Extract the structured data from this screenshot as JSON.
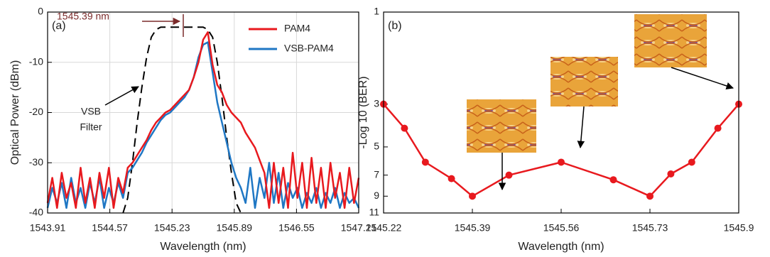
{
  "chart_data": [
    {
      "type": "line",
      "panel_label": "(a)",
      "xlabel": "Wavelength (nm)",
      "ylabel": "Optical Power  (dBm)",
      "xlim": [
        1543.91,
        1547.21
      ],
      "xticks": [
        1543.91,
        1544.57,
        1545.23,
        1545.89,
        1546.55,
        1547.21
      ],
      "ylim": [
        -40,
        0
      ],
      "yticks": [
        -40,
        -30,
        -20,
        -10,
        0
      ],
      "grid": true,
      "legend": "upper right",
      "annotations": [
        "1545.39 nm",
        "VSB",
        "Filter"
      ],
      "x": [
        1543.91,
        1543.96,
        1544.01,
        1544.06,
        1544.11,
        1544.16,
        1544.21,
        1544.26,
        1544.31,
        1544.36,
        1544.41,
        1544.46,
        1544.51,
        1544.56,
        1544.61,
        1544.66,
        1544.71,
        1544.76,
        1544.81,
        1544.86,
        1544.91,
        1544.96,
        1545.01,
        1545.06,
        1545.11,
        1545.16,
        1545.21,
        1545.26,
        1545.31,
        1545.36,
        1545.41,
        1545.46,
        1545.51,
        1545.56,
        1545.61,
        1545.66,
        1545.71,
        1545.76,
        1545.81,
        1545.86,
        1545.91,
        1545.96,
        1546.01,
        1546.06,
        1546.11,
        1546.16,
        1546.21,
        1546.26,
        1546.31,
        1546.36,
        1546.41,
        1546.46,
        1546.51,
        1546.56,
        1546.61,
        1546.66,
        1546.71,
        1546.76,
        1546.81,
        1546.86,
        1546.91,
        1546.96,
        1547.01,
        1547.06,
        1547.11,
        1547.16,
        1547.21
      ],
      "series": [
        {
          "name": "PAM4",
          "color": "#e8191e",
          "values": [
            -38,
            -33,
            -39,
            -32,
            -37,
            -34,
            -39,
            -31,
            -38,
            -33,
            -39,
            -32,
            -37,
            -31,
            -39,
            -33,
            -36,
            -31,
            -30,
            -28.5,
            -27,
            -25.5,
            -23.5,
            -22,
            -21,
            -20,
            -19.5,
            -18.5,
            -17.5,
            -16.5,
            -15.5,
            -13,
            -10,
            -5.5,
            -4,
            -10.5,
            -14.5,
            -16,
            -18.5,
            -20,
            -21,
            -22,
            -24,
            -25.5,
            -27,
            -29.5,
            -32,
            -39,
            -30,
            -38,
            -31,
            -39,
            -28,
            -37,
            -30,
            -39,
            -29,
            -38,
            -31,
            -39,
            -30,
            -37,
            -32,
            -39,
            -31,
            -38,
            -33
          ]
        },
        {
          "name": "VSB-PAM4",
          "color": "#1f77c4",
          "values": [
            -39,
            -35,
            -38,
            -34,
            -39,
            -33,
            -38,
            -35,
            -39,
            -34,
            -38,
            -33,
            -39,
            -35,
            -38,
            -34,
            -37,
            -32,
            -31,
            -29.5,
            -28,
            -26,
            -24.5,
            -23,
            -21.5,
            -20.5,
            -20,
            -19,
            -18,
            -17,
            -15.5,
            -13,
            -9,
            -6.5,
            -6,
            -12,
            -18,
            -22,
            -26,
            -30,
            -33,
            -35,
            -38,
            -31,
            -39,
            -33,
            -37,
            -30,
            -38,
            -32,
            -39,
            -34,
            -37,
            -35,
            -39,
            -36,
            -38,
            -35,
            -39,
            -36,
            -38,
            -35,
            -39,
            -36,
            -38,
            -37,
            -39
          ]
        },
        {
          "color": "#000000",
          "dash": true,
          "values": [
            null,
            null,
            null,
            null,
            null,
            null,
            null,
            null,
            null,
            null,
            null,
            null,
            null,
            null,
            null,
            null,
            -40,
            -37,
            -30,
            -22,
            -15,
            -9,
            -5,
            -3.5,
            -3,
            -3,
            -3,
            -3,
            -3,
            -3,
            -3,
            -3,
            -3,
            -3,
            -3.5,
            -5,
            -10,
            -17,
            -25,
            -32,
            -38,
            -40,
            null,
            null,
            null,
            null,
            null,
            null,
            null,
            null,
            null,
            null,
            null,
            null,
            null,
            null,
            null,
            null,
            null,
            null,
            null,
            null,
            null,
            null,
            null,
            null,
            null
          ]
        }
      ]
    },
    {
      "type": "line",
      "panel_label": "(b)",
      "xlabel": "Wavelength (nm)",
      "ylabel": "-Log 10 (BER)",
      "xlim": [
        1545.22,
        1545.9
      ],
      "xticks": [
        1545.22,
        1545.39,
        1545.56,
        1545.73,
        1545.9
      ],
      "ylim": [
        11,
        1
      ],
      "yticks": [
        1,
        3,
        5,
        7,
        9,
        11
      ],
      "log": true,
      "grid": false,
      "markers": true,
      "x": [
        1545.22,
        1545.26,
        1545.3,
        1545.35,
        1545.39,
        1545.46,
        1545.56,
        1545.66,
        1545.73,
        1545.77,
        1545.81,
        1545.86,
        1545.9
      ],
      "series": [
        {
          "color": "#e8191e",
          "values": [
            3,
            4,
            6,
            7.3,
            9,
            7,
            6,
            7.4,
            9,
            6.9,
            6,
            4,
            3
          ]
        }
      ]
    }
  ]
}
